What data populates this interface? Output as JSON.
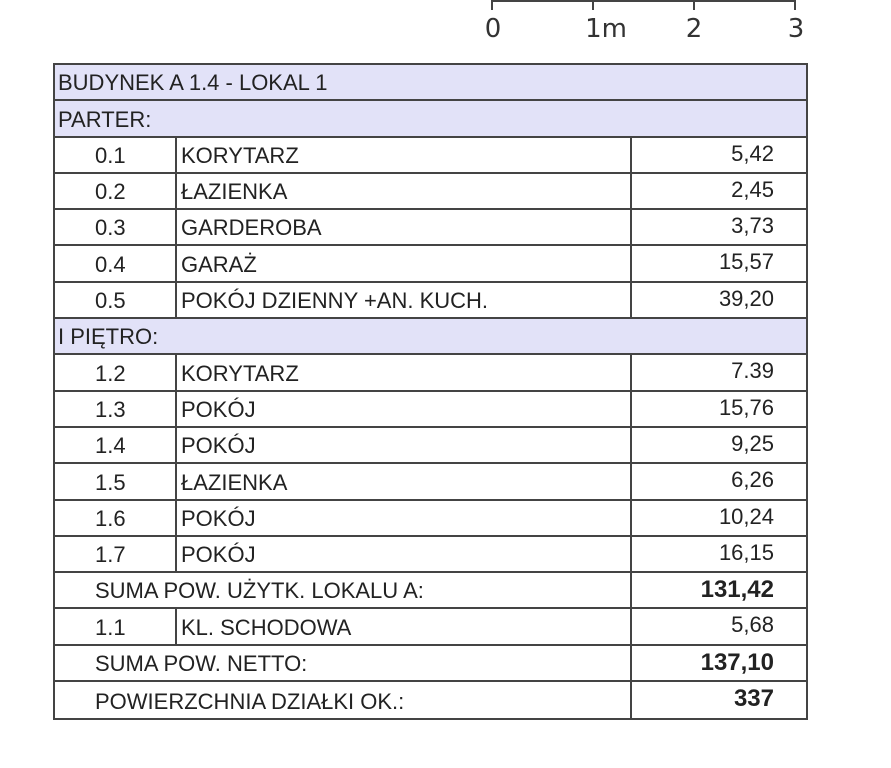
{
  "scale_bar": {
    "labels": [
      "0",
      "1m",
      "2",
      "3"
    ]
  },
  "table": {
    "title": "BUDYNEK A 1.4 - LOKAL 1",
    "sections": [
      {
        "label": "PARTER:",
        "rows": [
          {
            "no": "0.1",
            "name": "KORYTARZ",
            "area": "5,42"
          },
          {
            "no": "0.2",
            "name": "ŁAZIENKA",
            "area": "2,45"
          },
          {
            "no": "0.3",
            "name": "GARDEROBA",
            "area": "3,73"
          },
          {
            "no": "0.4",
            "name": "GARAŻ",
            "area": "15,57"
          },
          {
            "no": "0.5",
            "name": "POKÓJ DZIENNY +AN. KUCH.",
            "area": "39,20"
          }
        ]
      },
      {
        "label": "I PIĘTRO:",
        "rows": [
          {
            "no": "1.2",
            "name": "KORYTARZ",
            "area": "7.39"
          },
          {
            "no": "1.3",
            "name": "POKÓJ",
            "area": "15,76"
          },
          {
            "no": "1.4",
            "name": "POKÓJ",
            "area": "9,25"
          },
          {
            "no": "1.5",
            "name": "ŁAZIENKA",
            "area": "6,26"
          },
          {
            "no": "1.6",
            "name": "POKÓJ",
            "area": "10,24"
          },
          {
            "no": "1.7",
            "name": "POKÓJ",
            "area": "16,15"
          }
        ]
      }
    ],
    "sum_usable": {
      "label": "SUMA POW. UŻYTK. LOKALU A:",
      "value": "131,42"
    },
    "staircase": {
      "no": "1.1",
      "name": "KL. SCHODOWA",
      "area": "5,68"
    },
    "sum_net": {
      "label": "SUMA POW. NETTO:",
      "value": "137,10"
    },
    "plot_area": {
      "label": "POWIERZCHNIA DZIAŁKI OK.:",
      "value": "337"
    }
  }
}
